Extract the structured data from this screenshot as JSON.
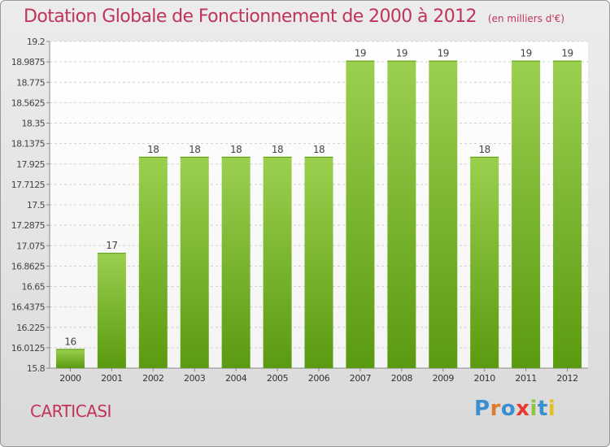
{
  "title": "Dotation Globale de Fonctionnement de 2000 à 2012",
  "subtitle": "(en milliers d'€)",
  "place": "CARTICASI",
  "logo": {
    "text": "Proxiti",
    "letter_colors": [
      "#3a8fd1",
      "#e07a2a",
      "#3a8fd1",
      "#e8392f",
      "#8cc63f",
      "#3a8fd1",
      "#e0c020"
    ]
  },
  "colors": {
    "bar_top": "#9bd04f",
    "bar_bottom": "#5a9a10",
    "title": "#c0345a"
  },
  "chart_data": {
    "type": "bar",
    "title": "Dotation Globale de Fonctionnement de 2000 à 2012",
    "subtitle": "(en milliers d'€)",
    "categories": [
      "2000",
      "2001",
      "2002",
      "2003",
      "2004",
      "2005",
      "2006",
      "2007",
      "2008",
      "2009",
      "2010",
      "2011",
      "2012"
    ],
    "values": [
      16,
      17,
      18,
      18,
      18,
      18,
      18,
      19,
      19,
      19,
      18,
      19,
      19
    ],
    "data_labels": [
      "16",
      "17",
      "18",
      "18",
      "18",
      "18",
      "18",
      "19",
      "19",
      "19",
      "18",
      "19",
      "19"
    ],
    "ylim": [
      15.8,
      19.2
    ],
    "yticks": [
      "15.8",
      "16.0125",
      "16.225",
      "16.4375",
      "16.65",
      "16.8625",
      "17.075",
      "17.2875",
      "17.5",
      "17.7125",
      "17.925",
      "18.1375",
      "18.35",
      "18.5625",
      "18.775",
      "18.9875",
      "19.2"
    ],
    "xlabel": "",
    "ylabel": "",
    "grid": true
  }
}
